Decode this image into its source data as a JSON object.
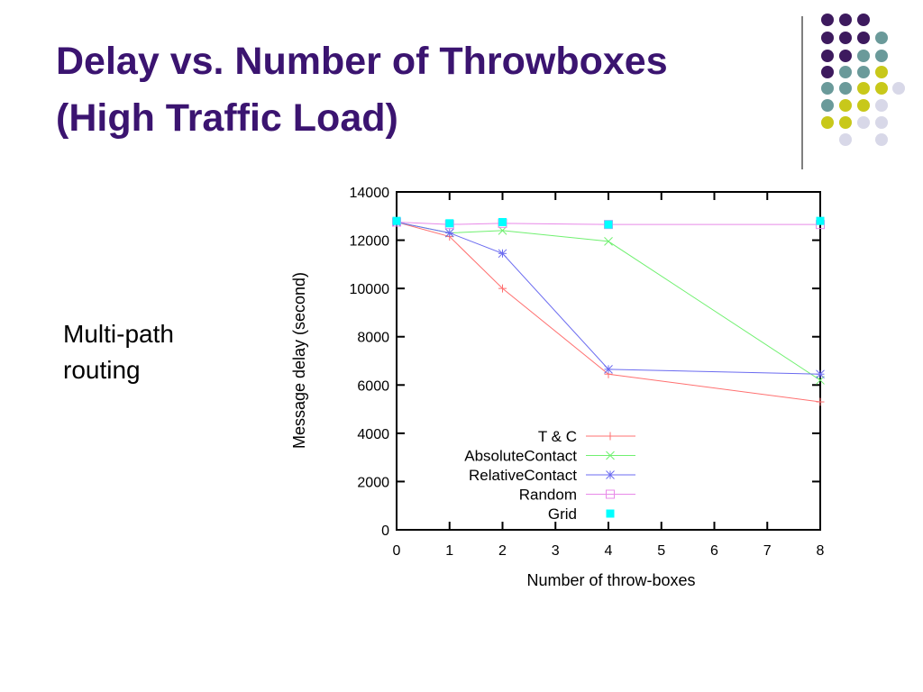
{
  "slide": {
    "title_lines": [
      "Delay vs. Number of Throwboxes",
      "(High Traffic Load)"
    ],
    "body": [
      "Multi-path",
      "routing"
    ]
  },
  "chart_data": {
    "type": "line",
    "x": [
      0,
      1,
      2,
      4,
      8
    ],
    "xlabel": "Number of throw-boxes",
    "ylabel": "Message delay (second)",
    "xlim": [
      0,
      8
    ],
    "xticks": [
      0,
      1,
      2,
      3,
      4,
      5,
      6,
      7,
      8
    ],
    "ylim": [
      0,
      14000
    ],
    "yticks": [
      0,
      2000,
      4000,
      6000,
      8000,
      10000,
      12000,
      14000
    ],
    "legend": "lower center",
    "series": [
      {
        "name": "T & C",
        "color": "#ff7070",
        "marker": "plus",
        "show_line": true,
        "values": [
          12750,
          12150,
          10000,
          6450,
          5300
        ]
      },
      {
        "name": "AbsoluteContact",
        "color": "#70f070",
        "marker": "cross",
        "show_line": true,
        "values": [
          12750,
          12300,
          12400,
          11950,
          6200
        ]
      },
      {
        "name": "RelativeContact",
        "color": "#6b6bf0",
        "marker": "star",
        "show_line": true,
        "values": [
          12750,
          12300,
          11450,
          6650,
          6450
        ]
      },
      {
        "name": "Random",
        "color": "#e88ae8",
        "marker": "square-open",
        "show_line": true,
        "values": [
          12750,
          12650,
          12700,
          12650,
          12650
        ]
      },
      {
        "name": "Grid",
        "color": "#00ffff",
        "marker": "square-filled",
        "show_line": false,
        "values": [
          12800,
          12700,
          12750,
          12650,
          12800
        ]
      }
    ]
  }
}
